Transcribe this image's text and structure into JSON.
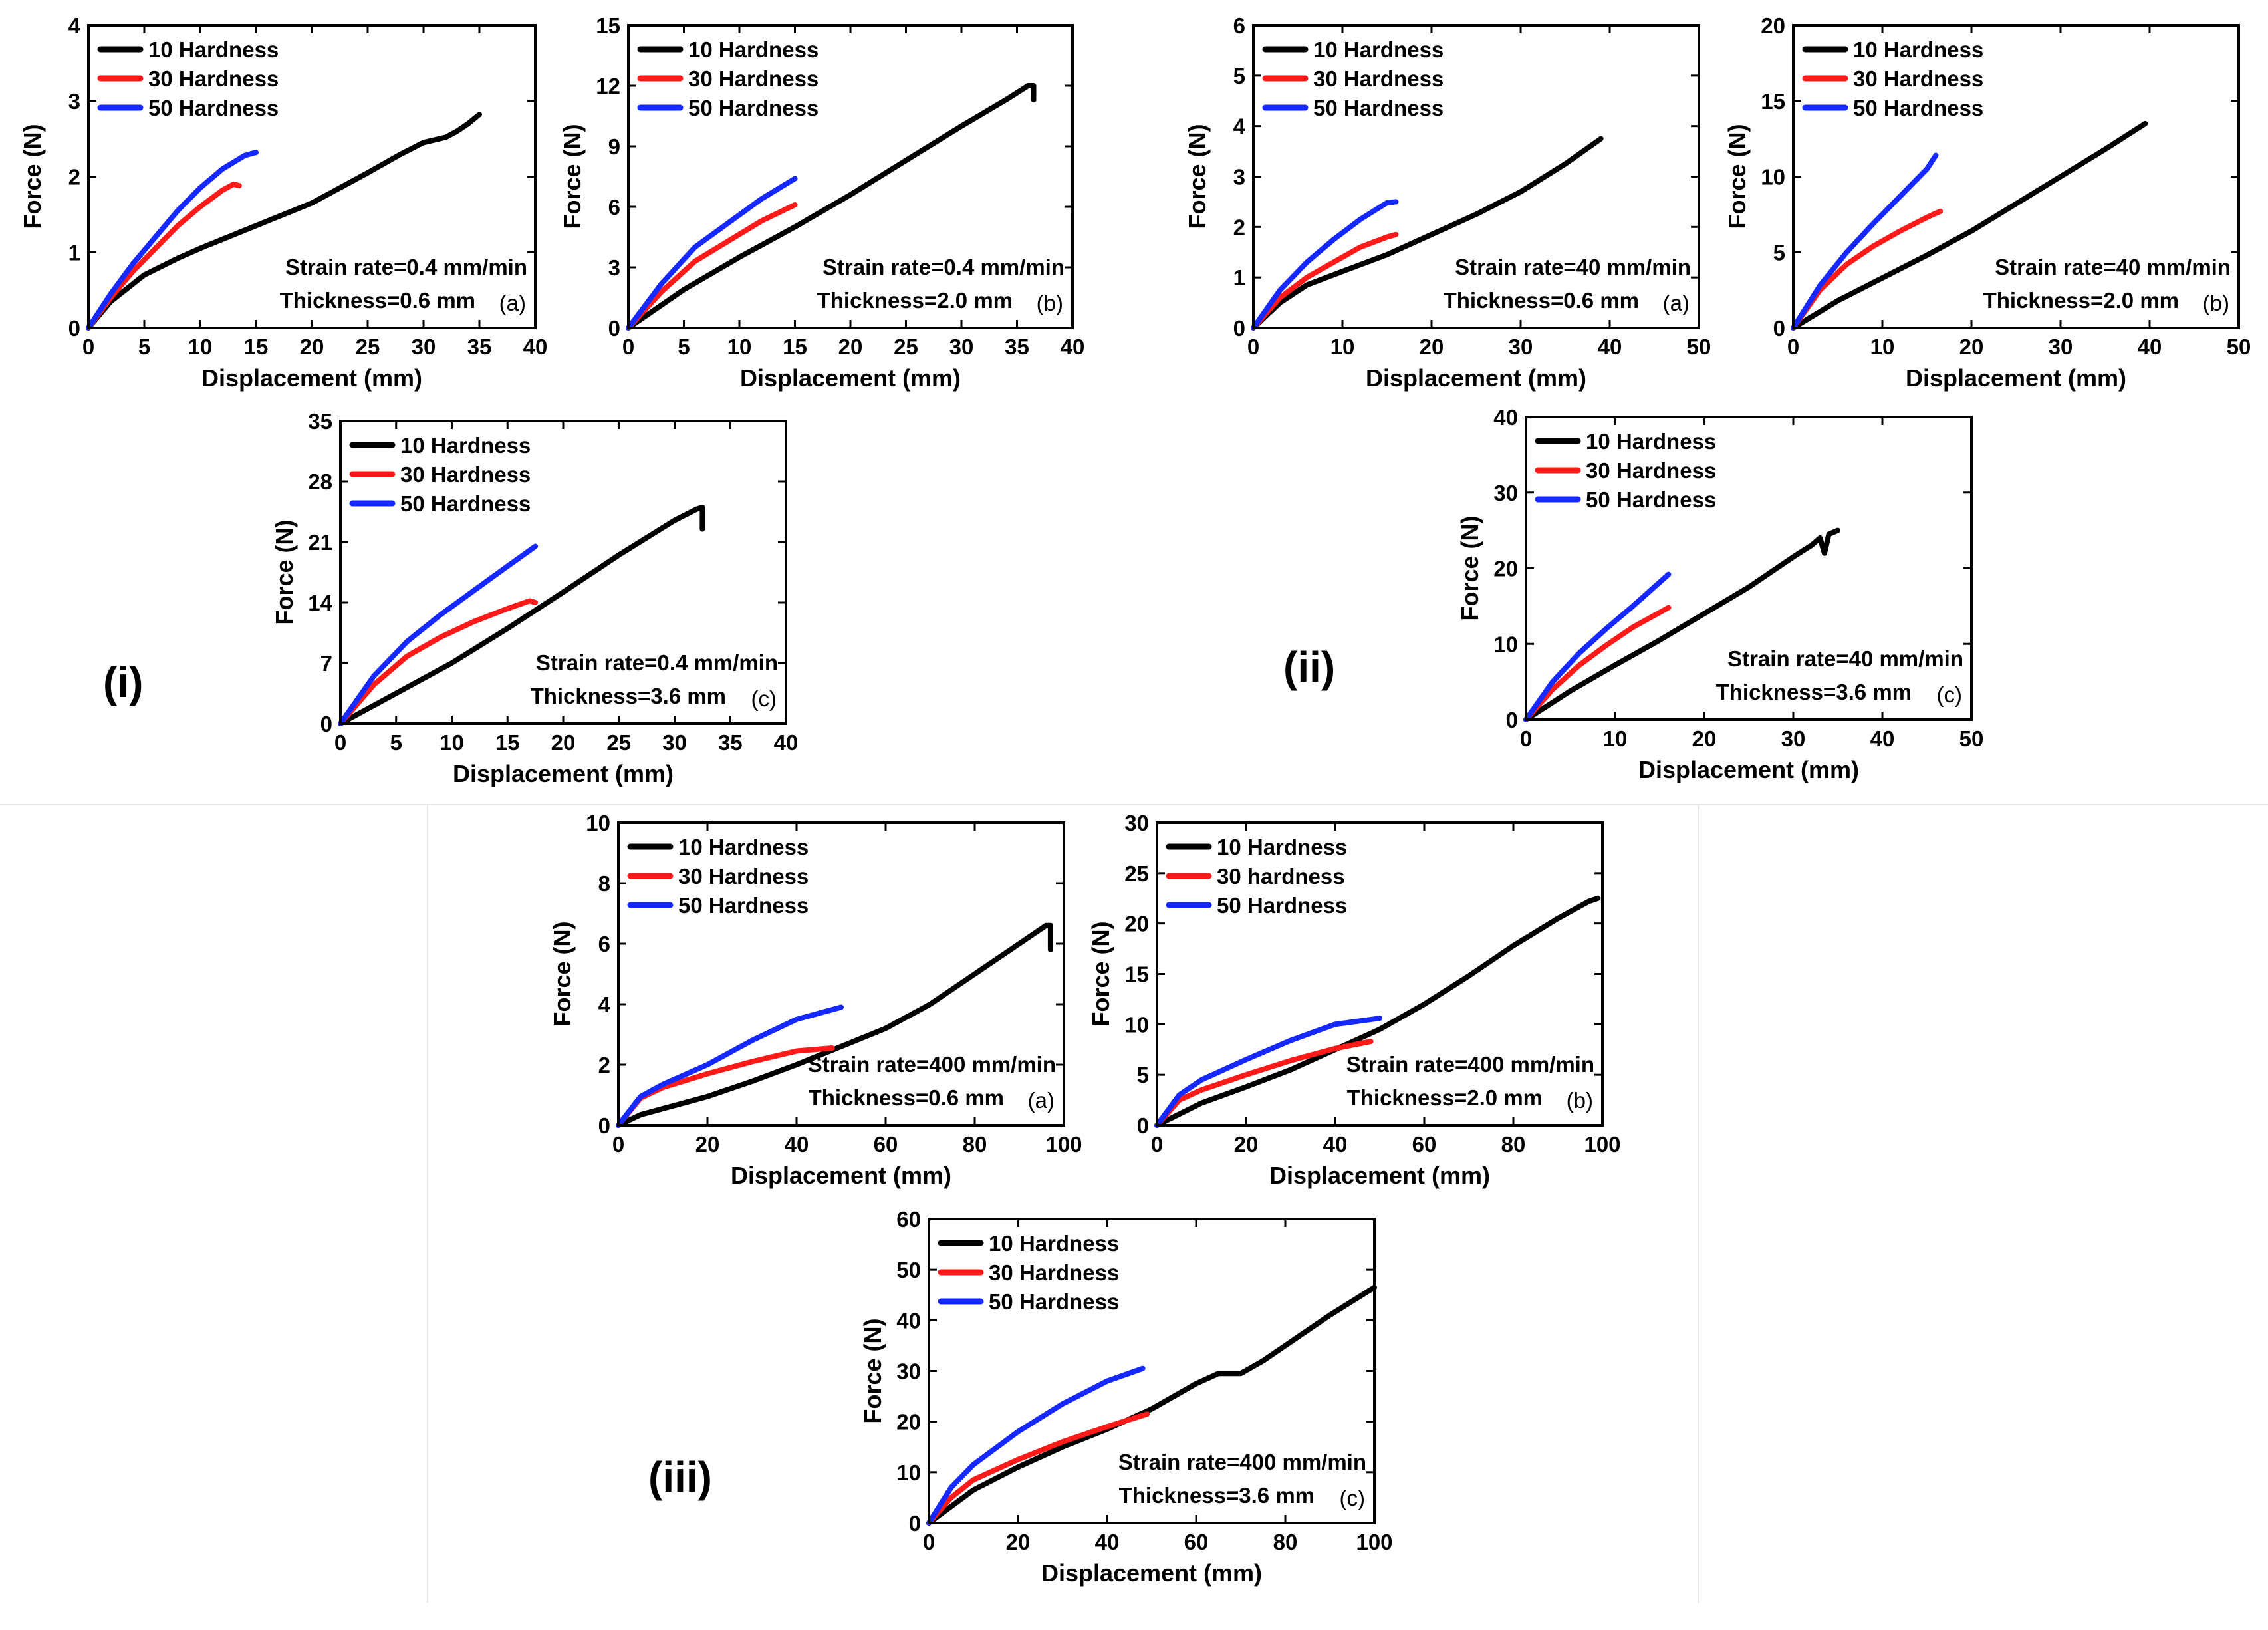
{
  "colors": {
    "black": "#000000",
    "red": "#ff1a1a",
    "blue": "#1428ff"
  },
  "group_labels": [
    "(i)",
    "(ii)",
    "(iii)"
  ],
  "chart_data": [
    {
      "id": "i_a",
      "group": "(i)",
      "type": "line",
      "panel_label": "(a)",
      "xlabel": "Displacement (mm)",
      "ylabel": "Force (N)",
      "xlim": [
        0,
        40
      ],
      "ylim": [
        0,
        4
      ],
      "xticks": [
        0,
        5,
        10,
        15,
        20,
        25,
        30,
        35,
        40
      ],
      "yticks": [
        0,
        1,
        2,
        3,
        4
      ],
      "annotations": [
        "Strain rate=0.4 mm/min",
        "Thickness=0.6 mm"
      ],
      "series": [
        {
          "name": "10 Hardness",
          "color": "black",
          "x": [
            0,
            2,
            5,
            8,
            10,
            15,
            20,
            25,
            28,
            30,
            32,
            33,
            34,
            35
          ],
          "y": [
            0,
            0.35,
            0.7,
            0.92,
            1.05,
            1.35,
            1.65,
            2.05,
            2.3,
            2.45,
            2.52,
            2.6,
            2.7,
            2.82
          ]
        },
        {
          "name": "30 Hardness",
          "color": "red",
          "x": [
            0,
            2,
            4,
            6,
            8,
            10,
            12,
            13,
            13.5
          ],
          "y": [
            0,
            0.4,
            0.75,
            1.05,
            1.35,
            1.6,
            1.82,
            1.9,
            1.88
          ]
        },
        {
          "name": "50 Hardness",
          "color": "blue",
          "x": [
            0,
            2,
            4,
            6,
            8,
            10,
            12,
            14,
            15
          ],
          "y": [
            0,
            0.45,
            0.85,
            1.2,
            1.55,
            1.85,
            2.1,
            2.28,
            2.32
          ]
        }
      ]
    },
    {
      "id": "i_b",
      "group": "(i)",
      "type": "line",
      "panel_label": "(b)",
      "xlabel": "Displacement (mm)",
      "ylabel": "Force (N)",
      "xlim": [
        0,
        40
      ],
      "ylim": [
        0,
        15
      ],
      "xticks": [
        0,
        5,
        10,
        15,
        20,
        25,
        30,
        35,
        40
      ],
      "yticks": [
        0,
        3,
        6,
        9,
        12,
        15
      ],
      "annotations": [
        "Strain rate=0.4 mm/min",
        "Thickness=2.0 mm"
      ],
      "series": [
        {
          "name": "10 Hardness",
          "color": "black",
          "x": [
            0,
            5,
            10,
            15,
            20,
            25,
            30,
            34,
            36,
            36.5,
            36.5
          ],
          "y": [
            0,
            1.9,
            3.5,
            5.0,
            6.6,
            8.3,
            10.0,
            11.3,
            12.0,
            12.0,
            11.3
          ]
        },
        {
          "name": "30 Hardness",
          "color": "red",
          "x": [
            0,
            3,
            6,
            9,
            12,
            15
          ],
          "y": [
            0,
            1.8,
            3.3,
            4.3,
            5.3,
            6.1
          ]
        },
        {
          "name": "50 Hardness",
          "color": "blue",
          "x": [
            0,
            3,
            6,
            9,
            12,
            15
          ],
          "y": [
            0,
            2.2,
            4.0,
            5.2,
            6.4,
            7.4
          ]
        }
      ]
    },
    {
      "id": "ii_a",
      "group": "(ii)",
      "type": "line",
      "panel_label": "(a)",
      "xlabel": "Displacement (mm)",
      "ylabel": "Force (N)",
      "xlim": [
        0,
        50
      ],
      "ylim": [
        0,
        6
      ],
      "xticks": [
        0,
        10,
        20,
        30,
        40,
        50
      ],
      "yticks": [
        0,
        1,
        2,
        3,
        4,
        5,
        6
      ],
      "annotations": [
        "Strain rate=40 mm/min",
        "Thickness=0.6 mm"
      ],
      "series": [
        {
          "name": "10 Hardness",
          "color": "black",
          "x": [
            0,
            3,
            6,
            10,
            15,
            20,
            25,
            30,
            35,
            39
          ],
          "y": [
            0,
            0.5,
            0.85,
            1.12,
            1.45,
            1.85,
            2.25,
            2.7,
            3.25,
            3.75
          ]
        },
        {
          "name": "30 Hardness",
          "color": "red",
          "x": [
            0,
            3,
            6,
            9,
            12,
            15,
            16
          ],
          "y": [
            0,
            0.6,
            1.0,
            1.3,
            1.6,
            1.8,
            1.85
          ]
        },
        {
          "name": "50 Hardness",
          "color": "blue",
          "x": [
            0,
            3,
            6,
            9,
            12,
            15,
            16
          ],
          "y": [
            0,
            0.75,
            1.3,
            1.75,
            2.15,
            2.48,
            2.5
          ]
        }
      ]
    },
    {
      "id": "ii_b",
      "group": "(ii)",
      "type": "line",
      "panel_label": "(b)",
      "xlabel": "Displacement (mm)",
      "ylabel": "Force (N)",
      "xlim": [
        0,
        50
      ],
      "ylim": [
        0,
        20
      ],
      "xticks": [
        0,
        10,
        20,
        30,
        40,
        50
      ],
      "yticks": [
        0,
        5,
        10,
        15,
        20
      ],
      "annotations": [
        "Strain rate=40 mm/min",
        "Thickness=2.0 mm"
      ],
      "series": [
        {
          "name": "10 Hardness",
          "color": "black",
          "x": [
            0,
            5,
            10,
            15,
            20,
            25,
            30,
            35,
            39.5
          ],
          "y": [
            0,
            1.8,
            3.3,
            4.8,
            6.4,
            8.2,
            10.0,
            11.8,
            13.5
          ]
        },
        {
          "name": "30 Hardness",
          "color": "red",
          "x": [
            0,
            3,
            6,
            9,
            12,
            15,
            16.5
          ],
          "y": [
            0,
            2.5,
            4.2,
            5.4,
            6.4,
            7.3,
            7.7
          ]
        },
        {
          "name": "50 Hardness",
          "color": "blue",
          "x": [
            0,
            3,
            6,
            9,
            12,
            15,
            16
          ],
          "y": [
            0,
            2.8,
            5.0,
            6.9,
            8.7,
            10.5,
            11.4
          ]
        }
      ]
    },
    {
      "id": "i_c",
      "group": "(i)",
      "type": "line",
      "panel_label": "(c)",
      "xlabel": "Displacement (mm)",
      "ylabel": "Force (N)",
      "xlim": [
        0,
        40
      ],
      "ylim": [
        0,
        35
      ],
      "xticks": [
        0,
        5,
        10,
        15,
        20,
        25,
        30,
        35,
        40
      ],
      "yticks": [
        0,
        7,
        14,
        21,
        28,
        35
      ],
      "annotations": [
        "Strain rate=0.4 mm/min",
        "Thickness=3.6 mm"
      ],
      "series": [
        {
          "name": "10 Hardness",
          "color": "black",
          "x": [
            0,
            5,
            10,
            15,
            20,
            25,
            30,
            32,
            32.5,
            32.5
          ],
          "y": [
            0,
            3.5,
            7.0,
            11.0,
            15.2,
            19.5,
            23.5,
            24.8,
            25.0,
            22.5
          ]
        },
        {
          "name": "30 Hardness",
          "color": "red",
          "x": [
            0,
            3,
            6,
            9,
            12,
            15,
            17,
            17.5
          ],
          "y": [
            0,
            4.5,
            7.8,
            10.0,
            11.8,
            13.3,
            14.2,
            14.0
          ]
        },
        {
          "name": "50 Hardness",
          "color": "blue",
          "x": [
            0,
            3,
            6,
            9,
            12,
            15,
            17.5
          ],
          "y": [
            0,
            5.5,
            9.5,
            12.6,
            15.4,
            18.2,
            20.5
          ]
        }
      ]
    },
    {
      "id": "ii_c",
      "group": "(ii)",
      "type": "line",
      "panel_label": "(c)",
      "xlabel": "Displacement (mm)",
      "ylabel": "Force (N)",
      "xlim": [
        0,
        50
      ],
      "ylim": [
        0,
        40
      ],
      "xticks": [
        0,
        10,
        20,
        30,
        40,
        50
      ],
      "yticks": [
        0,
        10,
        20,
        30,
        40
      ],
      "annotations": [
        "Strain rate=40 mm/min",
        "Thickness=3.6 mm"
      ],
      "series": [
        {
          "name": "10 Hardness",
          "color": "black",
          "x": [
            0,
            5,
            10,
            15,
            20,
            25,
            30,
            32,
            33,
            33.5,
            34,
            35
          ],
          "y": [
            0,
            3.8,
            7.2,
            10.5,
            14.0,
            17.5,
            21.5,
            23.0,
            24.0,
            22.0,
            24.5,
            25.0
          ]
        },
        {
          "name": "30 Hardness",
          "color": "red",
          "x": [
            0,
            3,
            6,
            9,
            12,
            16
          ],
          "y": [
            0,
            4.0,
            7.2,
            9.8,
            12.2,
            14.8
          ]
        },
        {
          "name": "50 Hardness",
          "color": "blue",
          "x": [
            0,
            3,
            6,
            9,
            12,
            16
          ],
          "y": [
            0,
            5.0,
            8.8,
            12.0,
            15.0,
            19.2
          ]
        }
      ]
    },
    {
      "id": "iii_a",
      "group": "(iii)",
      "type": "line",
      "panel_label": "(a)",
      "xlabel": "Displacement (mm)",
      "ylabel": "Force (N)",
      "xlim": [
        0,
        100
      ],
      "ylim": [
        0,
        10
      ],
      "xticks": [
        0,
        20,
        40,
        60,
        80,
        100
      ],
      "yticks": [
        0,
        2,
        4,
        6,
        8,
        10
      ],
      "annotations": [
        "Strain rate=400 mm/min",
        "Thickness=0.6 mm"
      ],
      "series": [
        {
          "name": "10 Hardness",
          "color": "black",
          "x": [
            0,
            5,
            10,
            20,
            30,
            40,
            50,
            60,
            70,
            80,
            90,
            96,
            97,
            97
          ],
          "y": [
            0,
            0.35,
            0.55,
            0.95,
            1.45,
            2.0,
            2.6,
            3.2,
            4.0,
            5.0,
            6.0,
            6.6,
            6.6,
            5.8
          ]
        },
        {
          "name": "30 Hardness",
          "color": "red",
          "x": [
            0,
            5,
            10,
            20,
            30,
            40,
            48
          ],
          "y": [
            0,
            0.9,
            1.25,
            1.7,
            2.1,
            2.45,
            2.55
          ]
        },
        {
          "name": "50 Hardness",
          "color": "blue",
          "x": [
            0,
            5,
            10,
            20,
            30,
            40,
            50
          ],
          "y": [
            0,
            0.95,
            1.35,
            2.0,
            2.8,
            3.5,
            3.9
          ]
        }
      ]
    },
    {
      "id": "iii_b",
      "group": "(iii)",
      "type": "line",
      "panel_label": "(b)",
      "xlabel": "Displacement (mm)",
      "ylabel": "Force (N)",
      "xlim": [
        0,
        100
      ],
      "ylim": [
        0,
        30
      ],
      "xticks": [
        0,
        20,
        40,
        60,
        80,
        100
      ],
      "yticks": [
        0,
        5,
        10,
        15,
        20,
        25,
        30
      ],
      "annotations": [
        "Strain rate=400 mm/min",
        "Thickness=2.0 mm"
      ],
      "series": [
        {
          "name": "10 Hardness",
          "color": "black",
          "x": [
            0,
            10,
            20,
            30,
            40,
            50,
            60,
            70,
            80,
            90,
            97,
            99
          ],
          "y": [
            0,
            2.2,
            3.8,
            5.5,
            7.5,
            9.5,
            12.0,
            14.8,
            17.8,
            20.5,
            22.2,
            22.5
          ]
        },
        {
          "name": "30 hardness",
          "color": "red",
          "x": [
            0,
            5,
            10,
            20,
            30,
            40,
            48
          ],
          "y": [
            0,
            2.5,
            3.5,
            5.0,
            6.4,
            7.6,
            8.3
          ]
        },
        {
          "name": "50 Hardness",
          "color": "blue",
          "x": [
            0,
            5,
            10,
            20,
            30,
            40,
            50
          ],
          "y": [
            0,
            3.0,
            4.5,
            6.5,
            8.4,
            10.0,
            10.6
          ]
        }
      ]
    },
    {
      "id": "iii_c",
      "group": "(iii)",
      "type": "line",
      "panel_label": "(c)",
      "xlabel": "Displacement (mm)",
      "ylabel": "Force (N)",
      "xlim": [
        0,
        100
      ],
      "ylim": [
        0,
        60
      ],
      "xticks": [
        0,
        20,
        40,
        60,
        80,
        100
      ],
      "yticks": [
        0,
        10,
        20,
        30,
        40,
        50,
        60
      ],
      "annotations": [
        "Strain rate=400 mm/min",
        "Thickness=3.6 mm"
      ],
      "series": [
        {
          "name": "10 Hardness",
          "color": "black",
          "x": [
            0,
            10,
            20,
            30,
            40,
            50,
            60,
            65,
            70,
            75,
            80,
            90,
            100
          ],
          "y": [
            0,
            6.5,
            11.0,
            15.0,
            18.5,
            22.5,
            27.5,
            29.5,
            29.5,
            32.0,
            35.0,
            41.0,
            46.5
          ]
        },
        {
          "name": "30 Hardness",
          "color": "red",
          "x": [
            0,
            5,
            10,
            20,
            30,
            40,
            49
          ],
          "y": [
            0,
            5.0,
            8.5,
            12.5,
            16.0,
            19.0,
            21.5
          ]
        },
        {
          "name": "50 Hardness",
          "color": "blue",
          "x": [
            0,
            5,
            10,
            20,
            30,
            40,
            48
          ],
          "y": [
            0,
            7.0,
            11.5,
            18.0,
            23.5,
            28.0,
            30.5
          ]
        }
      ]
    }
  ]
}
